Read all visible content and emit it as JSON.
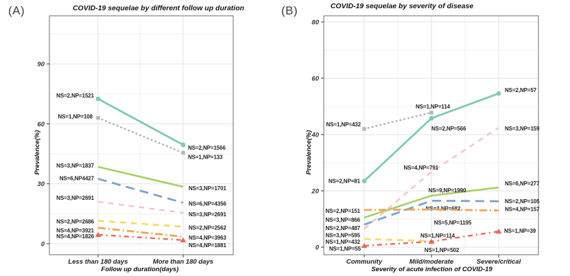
{
  "figure": {
    "tags": [
      "(A)",
      "(B)"
    ],
    "background": "#ffffff",
    "grid_major_color": "#e3e3e3",
    "grid_minor_color": "#f1f1f1",
    "panel_border_color": "#6b6b6b"
  },
  "chart_data": [
    {
      "type": "line",
      "tag": "(A)",
      "title": "COVID-19 sequelae by different follow up duration",
      "xlabel": "Follow up duration(days)",
      "ylabel": "Prevalence(%)",
      "categories": [
        "Less than 180 days",
        "More than 180 days"
      ],
      "ylim": [
        0,
        114
      ],
      "yticks": [
        0,
        30,
        60,
        90
      ],
      "yticks_minor": [
        15,
        45,
        75,
        105
      ],
      "grid": true,
      "legend_position": "none",
      "series": [
        {
          "name": "teal-solid",
          "color": "#7dcab8",
          "dash": "",
          "cap": "butt",
          "width": 2.8,
          "marker": "circle",
          "values": [
            72.5,
            49.5
          ],
          "labels": [
            {
              "text": "NS=2,NP=1521",
              "anchor": "end",
              "dx": -6,
              "dy": -5
            },
            {
              "text": "NS=2,NP=1566",
              "anchor": "start",
              "dx": 7,
              "dy": 4
            }
          ]
        },
        {
          "name": "gray-dotted",
          "color": "#b8b3c0",
          "dash": "0.8 5.2",
          "cap": "round",
          "width": 2.6,
          "marker": "square",
          "values": [
            63,
            45.5
          ],
          "labels": [
            {
              "text": "NS=1,NP=108",
              "anchor": "end",
              "dx": -8,
              "dy": -2
            },
            {
              "text": "NS=1,NP=133",
              "anchor": "start",
              "dx": 7,
              "dy": 6
            }
          ]
        },
        {
          "name": "green-solid",
          "color": "#a9cf62",
          "dash": "",
          "cap": "butt",
          "width": 2.6,
          "marker": "none",
          "values": [
            38.5,
            28.5
          ],
          "labels": [
            {
              "text": "NS=3,NP=1837",
              "anchor": "end",
              "dx": -6,
              "dy": -2
            },
            {
              "text": "NS=3,NP=1701",
              "anchor": "start",
              "dx": 8,
              "dy": 2
            }
          ]
        },
        {
          "name": "blue-dashed",
          "color": "#7ca2ca",
          "dash": "13 8",
          "cap": "butt",
          "width": 2.8,
          "marker": "none",
          "values": [
            32.5,
            20.5
          ],
          "labels": [
            {
              "text": "NS=6,NP4427",
              "anchor": "end",
              "dx": -6,
              "dy": -1
            },
            {
              "text": "NS=6,NP=4356",
              "anchor": "start",
              "dx": 8,
              "dy": 1
            }
          ]
        },
        {
          "name": "pink-dashed",
          "color": "#f4c2cd",
          "dash": "8 7",
          "cap": "butt",
          "width": 2.4,
          "marker": "none",
          "values": [
            21,
            15.5
          ],
          "labels": [
            {
              "text": "NS=3,NP=2691",
              "anchor": "end",
              "dx": -6,
              "dy": -6
            },
            {
              "text": "NS=3,NP=2691",
              "anchor": "start",
              "dx": 8,
              "dy": 2
            }
          ]
        },
        {
          "name": "yellow-dashed",
          "color": "#f3de67",
          "dash": "9 7",
          "cap": "butt",
          "width": 2.8,
          "marker": "none",
          "values": [
            11.5,
            8.5
          ],
          "labels": [
            {
              "text": "NS=2,NP=2686",
              "anchor": "end",
              "dx": -6,
              "dy": 1
            },
            {
              "text": "NS=2,NP=2562",
              "anchor": "start",
              "dx": 8,
              "dy": 1
            }
          ]
        },
        {
          "name": "orange-dashdot",
          "color": "#f1a556",
          "dash": "11 4 2 4",
          "cap": "butt",
          "width": 2.8,
          "marker": "none",
          "values": [
            8,
            3.5
          ],
          "labels": [
            {
              "text": "NS=4,NP=3921",
              "anchor": "end",
              "dx": -6,
              "dy": 4
            },
            {
              "text": "NS=4,NP=3963",
              "anchor": "start",
              "dx": 8,
              "dy": 1
            }
          ]
        },
        {
          "name": "red-dashdot",
          "color": "#e9695e",
          "dash": "7 5 2 5",
          "cap": "butt",
          "width": 2.4,
          "marker": "triangle",
          "values": [
            4.5,
            1.8
          ],
          "labels": [
            {
              "text": "NS=4,NP=1826",
              "anchor": "end",
              "dx": -6,
              "dy": 2
            },
            {
              "text": "NS=4,NP=1881",
              "anchor": "start",
              "dx": 8,
              "dy": 7
            }
          ]
        }
      ]
    },
    {
      "type": "line",
      "tag": "(B)",
      "title": "COVID-19 sequelae by severity of disease",
      "xlabel": "Severity of acute infection of COVID-19",
      "ylabel": "Prevalence(%)",
      "categories": [
        "Community",
        "Mild/moderate",
        "Severe/critical"
      ],
      "ylim": [
        0,
        82
      ],
      "yticks": [
        0,
        20,
        40,
        60,
        80
      ],
      "yticks_minor": [
        10,
        30,
        50,
        70
      ],
      "grid": true,
      "legend_position": "none",
      "series": [
        {
          "name": "teal-solid",
          "color": "#7dcab8",
          "dash": "",
          "cap": "butt",
          "width": 2.8,
          "marker": "circle",
          "values": [
            23.5,
            45.8,
            54.6
          ],
          "labels": [
            {
              "text": "NS=2,NP=81",
              "anchor": "end",
              "dx": -6,
              "dy": 0
            },
            {
              "text": "NS=2,NP=566",
              "anchor": "start",
              "dx": 0,
              "dy": 15
            },
            {
              "text": "NS=2,NP=57",
              "anchor": "start",
              "dx": 9,
              "dy": -5
            }
          ]
        },
        {
          "name": "gray-dotted",
          "color": "#b8b3c0",
          "dash": "0.8 5.2",
          "cap": "round",
          "width": 2.6,
          "marker": "square",
          "values": [
            42,
            47.8,
            null
          ],
          "labels": [
            {
              "text": "NS=1,NP=432",
              "anchor": "end",
              "dx": -5,
              "dy": -7
            },
            {
              "text": "NS=1,NP=114",
              "anchor": "middle",
              "dx": 2,
              "dy": -9
            },
            {
              "text": "",
              "anchor": "start",
              "dx": 0,
              "dy": 0
            }
          ]
        },
        {
          "name": "green-solid",
          "color": "#a9cf62",
          "dash": "",
          "cap": "butt",
          "width": 2.6,
          "marker": "none",
          "values": [
            10.5,
            18.3,
            21.2
          ],
          "labels": [
            {
              "text": "NS=3,NP=866",
              "anchor": "end",
              "dx": -6,
              "dy": 3
            },
            {
              "text": "NS=9,NP=1990",
              "anchor": "middle",
              "dx": 23,
              "dy": -8
            },
            {
              "text": "NS=6,NP=277",
              "anchor": "start",
              "dx": 9,
              "dy": -6
            }
          ]
        },
        {
          "name": "blue-dashed",
          "color": "#7ca2ca",
          "dash": "13 8",
          "cap": "butt",
          "width": 2.8,
          "marker": "none",
          "values": [
            8,
            16.5,
            16.3
          ],
          "labels": [
            {
              "text": "NS=2,NP=487",
              "anchor": "end",
              "dx": -6,
              "dy": 5
            },
            {
              "text": "NS=3,NP=682",
              "anchor": "middle",
              "dx": 17,
              "dy": 11
            },
            {
              "text": "NS=2,NP=105",
              "anchor": "start",
              "dx": 9,
              "dy": 0
            }
          ]
        },
        {
          "name": "pink-dashed",
          "color": "#f4c2cd",
          "dash": "8 7",
          "cap": "butt",
          "width": 2.4,
          "marker": "none",
          "values": [
            6.5,
            26.8,
            42.4
          ],
          "labels": [
            {
              "text": "NS=3,NP=595",
              "anchor": "end",
              "dx": -6,
              "dy": 9
            },
            {
              "text": "NS=4,NP=791",
              "anchor": "end",
              "dx": 10,
              "dy": -6
            },
            {
              "text": "NS=3,NP=159",
              "anchor": "start",
              "dx": 9,
              "dy": 1
            }
          ]
        },
        {
          "name": "yellow-dashed",
          "color": "#f3de67",
          "dash": "9 7",
          "cap": "butt",
          "width": 2.8,
          "marker": "none",
          "values": [
            2.9,
            2.2,
            null
          ],
          "labels": [
            {
              "text": "NS=1,NP=432",
              "anchor": "end",
              "dx": -6,
              "dy": 4
            },
            {
              "text": "NS=1,NP=502",
              "anchor": "middle",
              "dx": 15,
              "dy": 13
            },
            {
              "text": "",
              "anchor": "start",
              "dx": 0,
              "dy": 0
            }
          ]
        },
        {
          "name": "orange-dashdot",
          "color": "#f1a556",
          "dash": "11 4 2 4",
          "cap": "butt",
          "width": 2.8,
          "marker": "none",
          "values": [
            13.2,
            13.4,
            13
          ],
          "labels": [
            {
              "text": "NS=2,NP=151",
              "anchor": "end",
              "dx": -6,
              "dy": 1
            },
            {
              "text": "NS=5,NP=1195",
              "anchor": "middle",
              "dx": 31,
              "dy": 19
            },
            {
              "text": "NS=4,NP=157",
              "anchor": "start",
              "dx": 9,
              "dy": -2
            }
          ]
        },
        {
          "name": "red-dashdot",
          "color": "#e9695e",
          "dash": "7 5 2 5",
          "cap": "butt",
          "width": 2.4,
          "marker": "triangle",
          "values": [
            0.5,
            2,
            5.6
          ],
          "labels": [
            {
              "text": "NS=1,NP=55",
              "anchor": "end",
              "dx": -5,
              "dy": 4
            },
            {
              "text": "NS=1,NP=114",
              "anchor": "middle",
              "dx": 9,
              "dy": -9
            },
            {
              "text": "NS=1,NP=39",
              "anchor": "start",
              "dx": 8,
              "dy": -1
            }
          ]
        }
      ]
    }
  ]
}
